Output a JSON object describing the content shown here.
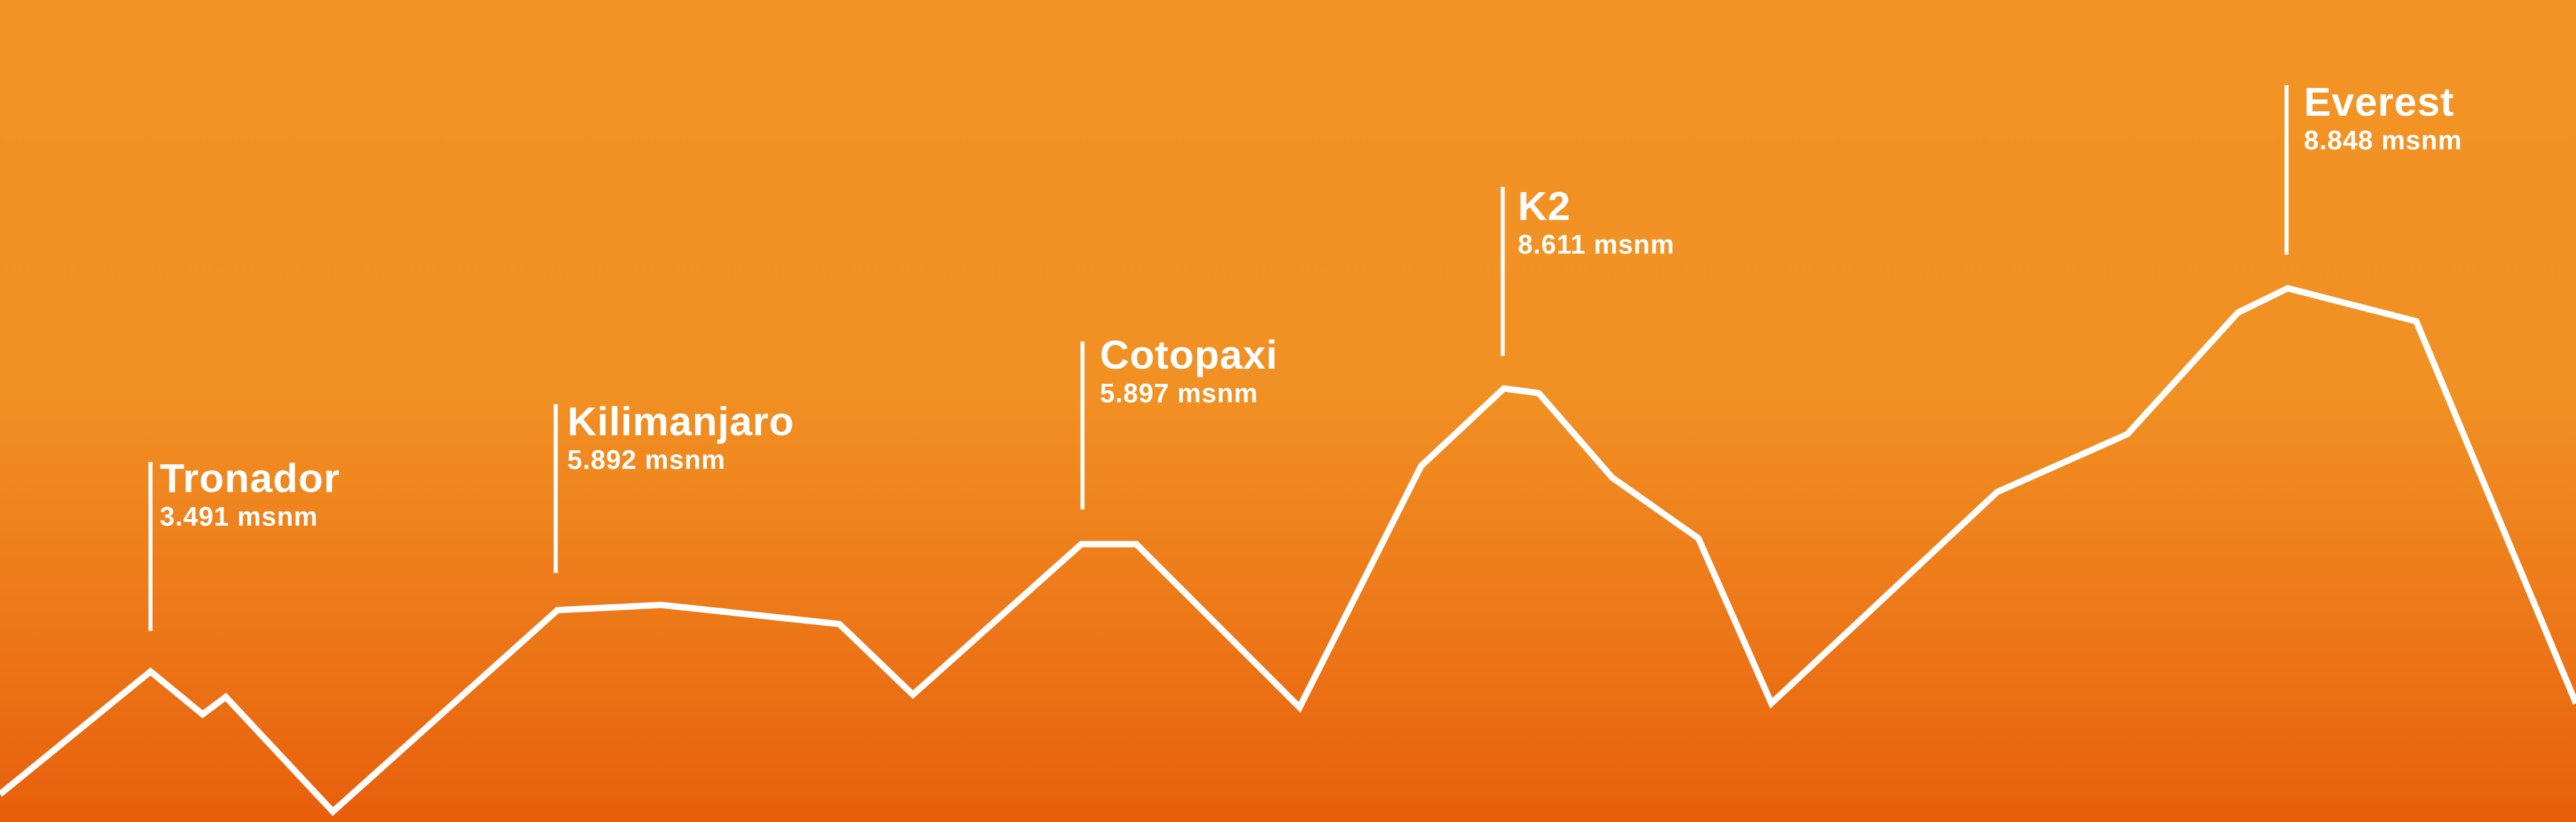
{
  "peaks": [
    {
      "name": "Tronador",
      "height": "3.491 msnm"
    },
    {
      "name": "Kilimanjaro",
      "height": "5.892 msnm"
    },
    {
      "name": "Cotopaxi",
      "height": "5.897 msnm"
    },
    {
      "name": "K2",
      "height": "8.611 msnm"
    },
    {
      "name": "Everest",
      "height": "8.848 msnm"
    }
  ],
  "colors": {
    "background_top": "#f29425",
    "background_bottom": "#e85e0b",
    "line": "#ffffff"
  }
}
